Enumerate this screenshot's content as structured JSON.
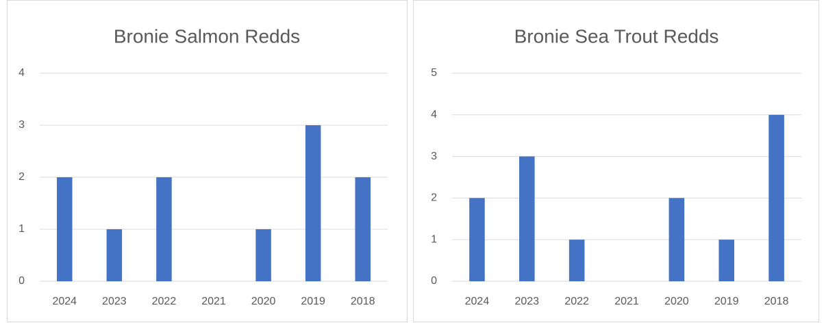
{
  "chart_data": [
    {
      "type": "bar",
      "title": "Bronie Salmon Redds",
      "categories": [
        "2024",
        "2023",
        "2022",
        "2021",
        "2020",
        "2019",
        "2018"
      ],
      "values": [
        2,
        1,
        2,
        0,
        1,
        3,
        2
      ],
      "color": "#4472c4",
      "ylim": [
        0,
        4
      ],
      "yticks": [
        0,
        1,
        2,
        3,
        4
      ],
      "grid": true
    },
    {
      "type": "bar",
      "title": "Bronie Sea Trout Redds",
      "categories": [
        "2024",
        "2023",
        "2022",
        "2021",
        "2020",
        "2019",
        "2018"
      ],
      "values": [
        2,
        3,
        1,
        0,
        2,
        1,
        4
      ],
      "color": "#4472c4",
      "ylim": [
        0,
        5
      ],
      "yticks": [
        0,
        1,
        2,
        3,
        4,
        5
      ],
      "grid": true
    }
  ]
}
